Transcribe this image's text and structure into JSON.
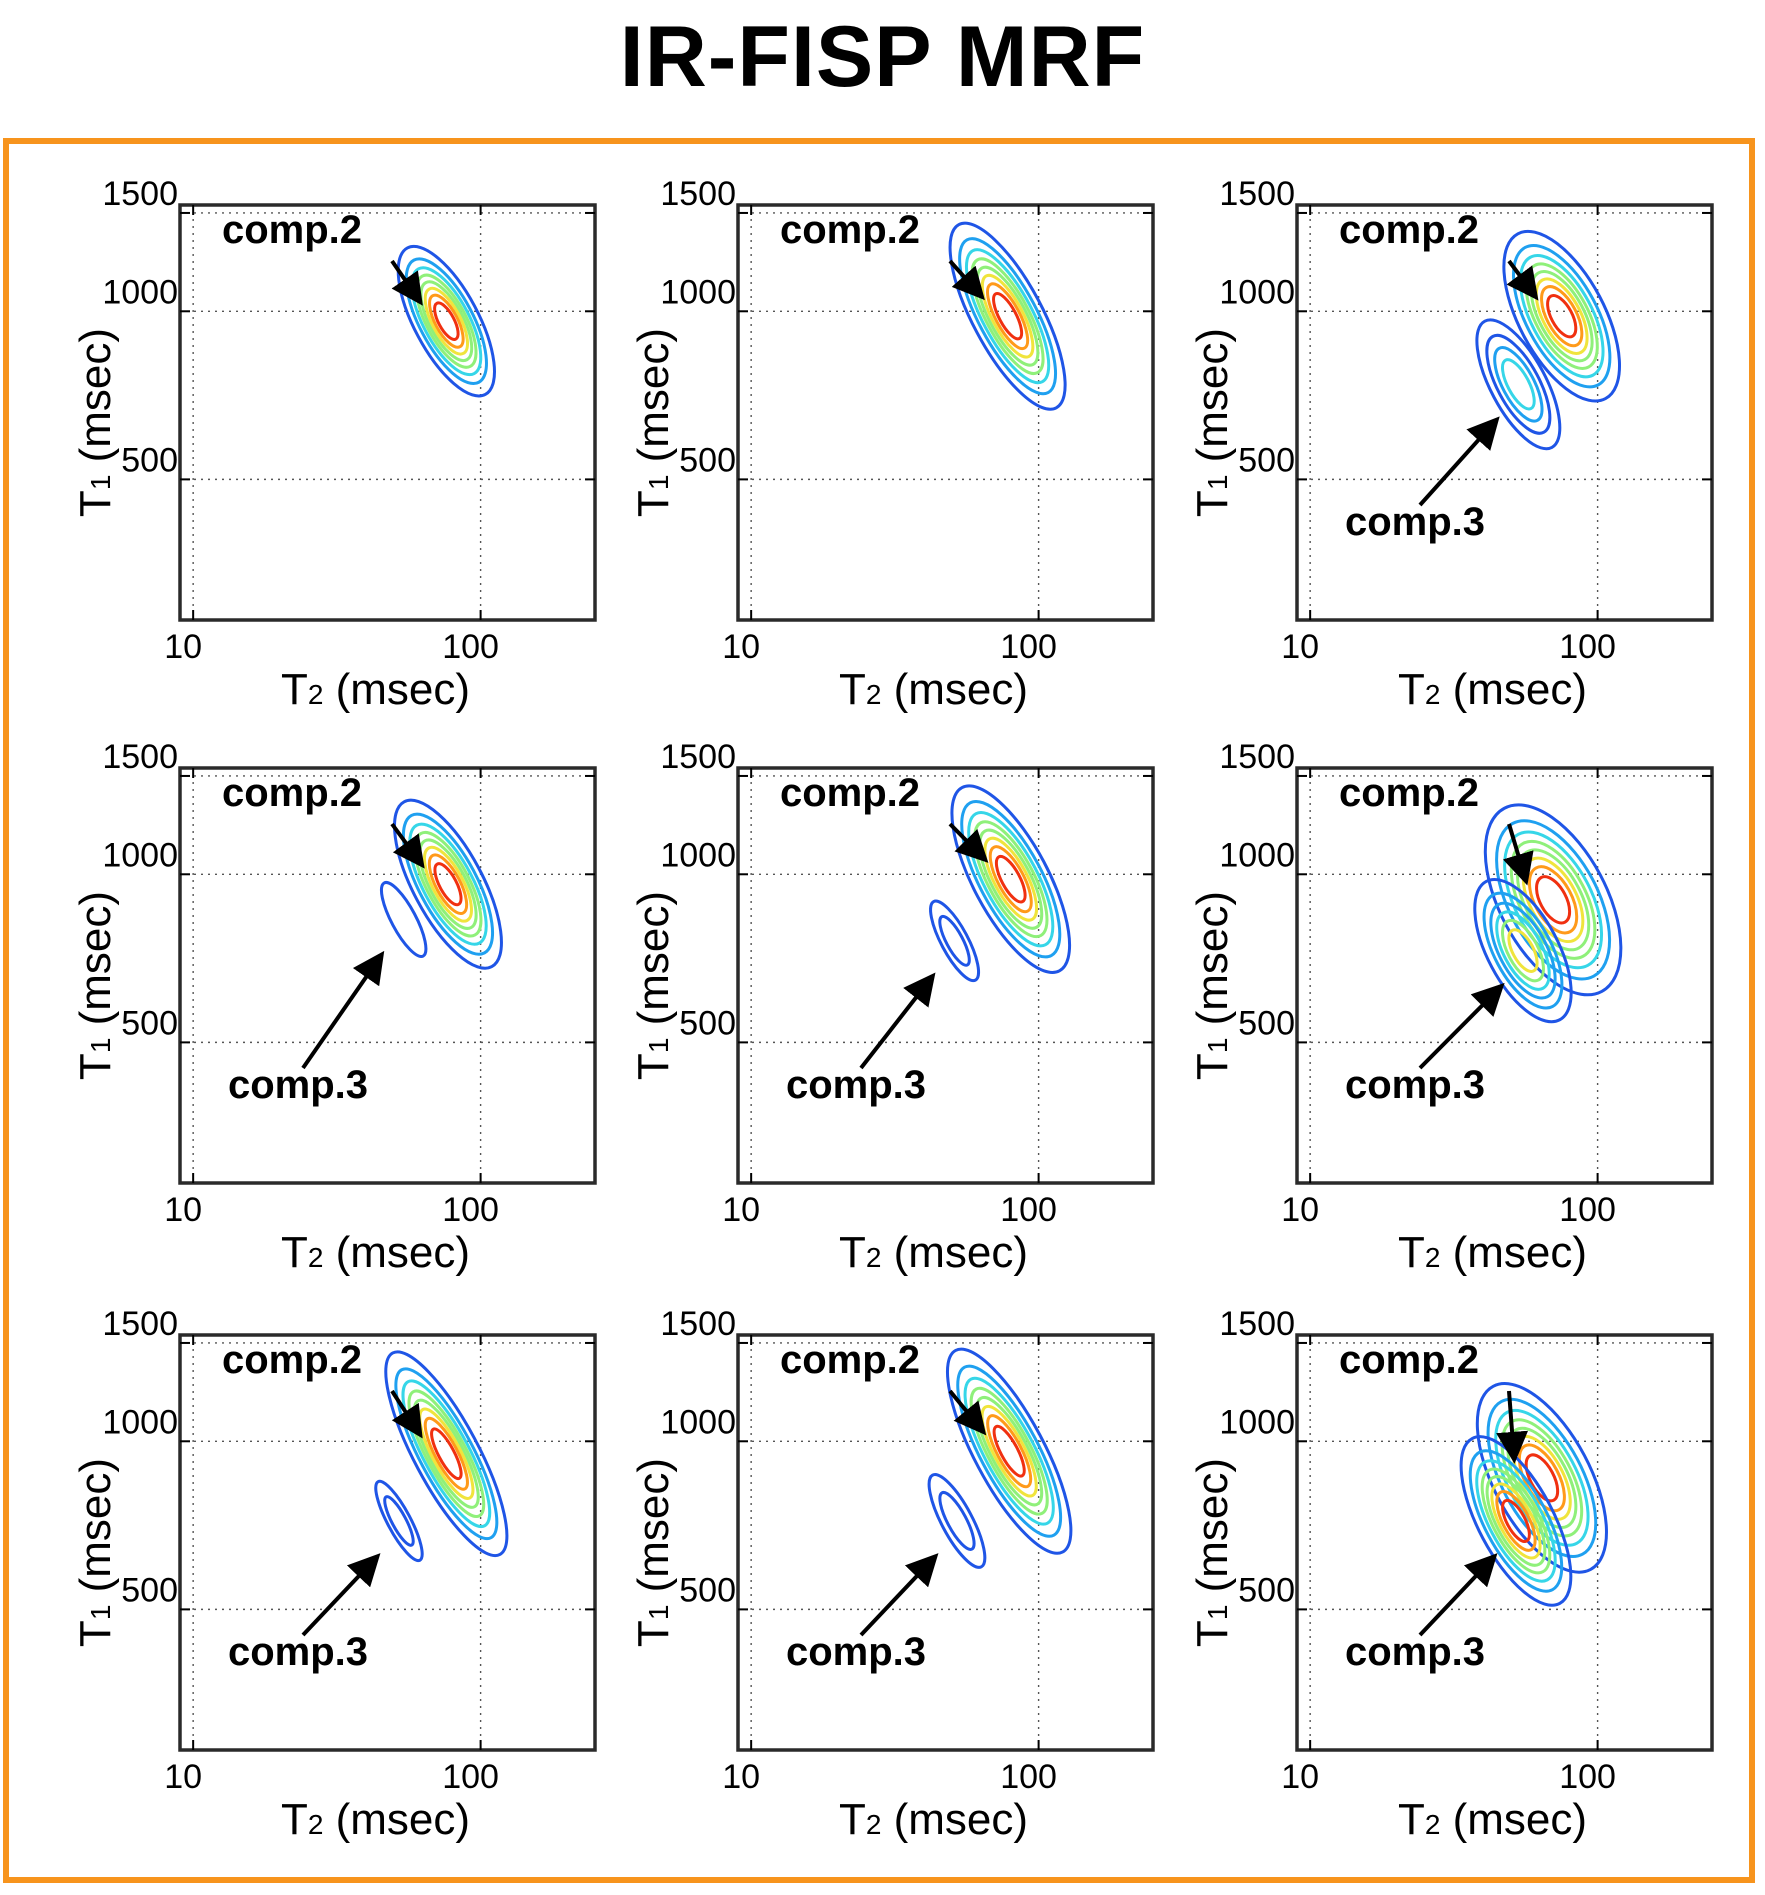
{
  "figure": {
    "title": "IR-FISP MRF",
    "frame_color": "#F7941D"
  },
  "axes": {
    "xlabel_main": "T",
    "xlabel_sub": "2",
    "xlabel_unit": " (msec)",
    "ylabel_main": "T",
    "ylabel_sub": "1",
    "ylabel_unit": " (msec)",
    "x_scale": "log",
    "y_scale": "log",
    "xlim": [
      9,
      250
    ],
    "ylim": [
      280,
      1550
    ],
    "x_ticks": [
      10,
      100
    ],
    "x_tick_labels": [
      "10",
      "100"
    ],
    "y_ticks": [
      500,
      1000,
      1500
    ],
    "y_tick_labels": [
      "500",
      "1000",
      "1500"
    ],
    "grid": "dotted"
  },
  "colormap": [
    "#0000c8",
    "#1f55e6",
    "#1fa0f0",
    "#36d6e8",
    "#8ff07a",
    "#f0e43c",
    "#ff9a1a",
    "#f03010",
    "#b00000"
  ],
  "annotation_labels": {
    "comp2": "comp.2",
    "comp3": "comp.3"
  },
  "chart_data": [
    {
      "type": "contour",
      "panel": "row1-col1",
      "components": [
        {
          "name": "comp.2",
          "label": "comp.2",
          "t2_ms": 76,
          "t1_ms": 960,
          "sigma_log_t2": 0.06,
          "sigma_log_t1": 0.08,
          "levels": 8,
          "peak": 1.0
        }
      ]
    },
    {
      "type": "contour",
      "panel": "row1-col2",
      "components": [
        {
          "name": "comp.2",
          "label": "comp.2",
          "t2_ms": 78,
          "t1_ms": 980,
          "sigma_log_t2": 0.065,
          "sigma_log_t1": 0.1,
          "levels": 8,
          "peak": 1.0
        }
      ]
    },
    {
      "type": "contour",
      "panel": "row1-col3",
      "components": [
        {
          "name": "comp.2",
          "label": "comp.2",
          "t2_ms": 75,
          "t1_ms": 980,
          "sigma_log_t2": 0.08,
          "sigma_log_t1": 0.09,
          "levels": 8,
          "peak": 1.0
        },
        {
          "name": "comp.3",
          "label": "comp.3",
          "t2_ms": 53,
          "t1_ms": 740,
          "sigma_log_t2": 0.06,
          "sigma_log_t1": 0.08,
          "levels": 4,
          "peak": 0.45
        }
      ]
    },
    {
      "type": "contour",
      "panel": "row2-col1",
      "components": [
        {
          "name": "comp.2",
          "label": "comp.2",
          "t2_ms": 77,
          "t1_ms": 960,
          "sigma_log_t2": 0.065,
          "sigma_log_t1": 0.09,
          "levels": 8,
          "peak": 1.0
        },
        {
          "name": "comp.3",
          "label": "comp.3",
          "t2_ms": 54,
          "t1_ms": 830,
          "sigma_log_t2": 0.04,
          "sigma_log_t1": 0.07,
          "levels": 1,
          "peak": 0.15
        }
      ]
    },
    {
      "type": "contour",
      "panel": "row2-col2",
      "components": [
        {
          "name": "comp.2",
          "label": "comp.2",
          "t2_ms": 80,
          "t1_ms": 980,
          "sigma_log_t2": 0.07,
          "sigma_log_t1": 0.1,
          "levels": 8,
          "peak": 1.0
        },
        {
          "name": "comp.3",
          "label": "comp.3",
          "t2_ms": 51,
          "t1_ms": 760,
          "sigma_log_t2": 0.035,
          "sigma_log_t1": 0.06,
          "levels": 2,
          "peak": 0.25
        }
      ]
    },
    {
      "type": "contour",
      "panel": "row2-col3",
      "components": [
        {
          "name": "comp.2",
          "label": "comp.2",
          "t2_ms": 70,
          "t1_ms": 900,
          "sigma_log_t2": 0.1,
          "sigma_log_t1": 0.1,
          "levels": 8,
          "peak": 1.0
        },
        {
          "name": "comp.3",
          "label": "comp.3",
          "t2_ms": 55,
          "t1_ms": 730,
          "sigma_log_t2": 0.07,
          "sigma_log_t1": 0.08,
          "levels": 6,
          "peak": 0.7
        }
      ]
    },
    {
      "type": "contour",
      "panel": "row3-col1",
      "components": [
        {
          "name": "comp.2",
          "label": "comp.2",
          "t2_ms": 76,
          "t1_ms": 950,
          "sigma_log_t2": 0.06,
          "sigma_log_t1": 0.11,
          "levels": 8,
          "peak": 1.0
        },
        {
          "name": "comp.3",
          "label": "comp.3",
          "t2_ms": 52,
          "t1_ms": 720,
          "sigma_log_t2": 0.03,
          "sigma_log_t1": 0.06,
          "levels": 2,
          "peak": 0.25
        }
      ]
    },
    {
      "type": "contour",
      "panel": "row3-col2",
      "components": [
        {
          "name": "comp.2",
          "label": "comp.2",
          "t2_ms": 79,
          "t1_ms": 960,
          "sigma_log_t2": 0.065,
          "sigma_log_t1": 0.11,
          "levels": 8,
          "peak": 1.0
        },
        {
          "name": "comp.3",
          "label": "comp.3",
          "t2_ms": 52,
          "t1_ms": 720,
          "sigma_log_t2": 0.04,
          "sigma_log_t1": 0.07,
          "levels": 2,
          "peak": 0.25
        }
      ]
    },
    {
      "type": "contour",
      "panel": "row3-col3",
      "components": [
        {
          "name": "comp.2",
          "label": "comp.2",
          "t2_ms": 64,
          "t1_ms": 860,
          "sigma_log_t2": 0.09,
          "sigma_log_t1": 0.1,
          "levels": 8,
          "peak": 1.0
        },
        {
          "name": "comp.3",
          "label": "comp.3",
          "t2_ms": 52,
          "t1_ms": 720,
          "sigma_log_t2": 0.07,
          "sigma_log_t1": 0.09,
          "levels": 8,
          "peak": 1.0
        }
      ]
    }
  ]
}
